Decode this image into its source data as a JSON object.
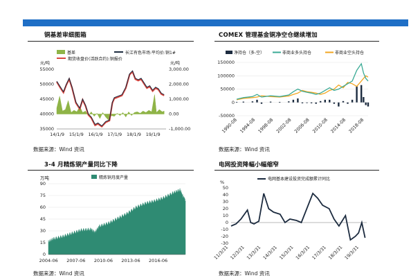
{
  "colors": {
    "bar": "#1f6fc6"
  },
  "panels": [
    {
      "title": "铜基差审细图箱",
      "source": "数据来源：Wind 资讯"
    },
    {
      "title": "COMEX 管理基金铜净空仓继续增加",
      "source": "数据来源：Wind 资讯"
    },
    {
      "title": "3-4 月精炼铜产量同比下降",
      "source": "数据来源：Wind 资讯"
    },
    {
      "title": "电网投资降幅小幅缩窄",
      "source": "数据来源：Wind 资讯"
    }
  ],
  "chart_data": [
    {
      "type": "line",
      "left_unit": "元/吨",
      "right_unit": "元/吨",
      "x_ticks": [
        "14/1/9",
        "15/1/9",
        "16/1/9",
        "17/1/9",
        "18/1/9",
        "19/1/9"
      ],
      "x_range": [
        2014.0,
        2019.7
      ],
      "y_left_ticks": [
        "35000",
        "40000",
        "45000",
        "50000",
        "55000"
      ],
      "y_left_range": [
        35000,
        55000
      ],
      "y_right_ticks": [
        "-1,000.00",
        "0.00",
        "1,000.00",
        "2,000.00",
        "3,000.00"
      ],
      "y_right_range": [
        -1000,
        3000
      ],
      "legend": [
        "基差",
        "长江有色市场:平均价:铜1#",
        "期货收盘价(活跃合约):铜报价"
      ],
      "colors": {
        "basis": "#8fb447",
        "spot": "#1c2b3f",
        "futures": "#d9463f"
      },
      "series": [
        {
          "name": "长江有色市场:平均价:铜1#",
          "points": [
            [
              2014.0,
              51000
            ],
            [
              2014.2,
              49000
            ],
            [
              2014.35,
              47500
            ],
            [
              2014.5,
              50000
            ],
            [
              2014.65,
              52000
            ],
            [
              2014.8,
              49000
            ],
            [
              2015.0,
              44000
            ],
            [
              2015.2,
              42000
            ],
            [
              2015.35,
              45000
            ],
            [
              2015.5,
              43000
            ],
            [
              2015.65,
              40000
            ],
            [
              2015.8,
              39000
            ],
            [
              2016.0,
              36500
            ],
            [
              2016.15,
              37000
            ],
            [
              2016.35,
              36000
            ],
            [
              2016.55,
              37500
            ],
            [
              2016.75,
              38000
            ],
            [
              2016.9,
              44000
            ],
            [
              2017.0,
              45500
            ],
            [
              2017.2,
              46000
            ],
            [
              2017.4,
              46500
            ],
            [
              2017.6,
              49000
            ],
            [
              2017.8,
              53500
            ],
            [
              2017.95,
              54500
            ],
            [
              2018.1,
              52000
            ],
            [
              2018.25,
              51500
            ],
            [
              2018.4,
              52000
            ],
            [
              2018.55,
              50500
            ],
            [
              2018.7,
              49000
            ],
            [
              2018.85,
              49500
            ],
            [
              2019.0,
              48000
            ],
            [
              2019.15,
              49000
            ],
            [
              2019.3,
              48500
            ],
            [
              2019.45,
              47000
            ],
            [
              2019.6,
              46500
            ]
          ]
        },
        {
          "name": "期货收盘价(活跃合约):铜报价",
          "points": [
            [
              2014.0,
              50800
            ],
            [
              2014.2,
              48700
            ],
            [
              2014.35,
              47200
            ],
            [
              2014.5,
              49800
            ],
            [
              2014.65,
              51700
            ],
            [
              2014.8,
              48700
            ],
            [
              2015.0,
              43700
            ],
            [
              2015.2,
              41700
            ],
            [
              2015.35,
              44800
            ],
            [
              2015.5,
              42700
            ],
            [
              2015.65,
              39700
            ],
            [
              2015.8,
              38700
            ],
            [
              2016.0,
              36200
            ],
            [
              2016.15,
              36700
            ],
            [
              2016.35,
              35800
            ],
            [
              2016.55,
              37200
            ],
            [
              2016.75,
              37800
            ],
            [
              2016.9,
              43700
            ],
            [
              2017.0,
              45200
            ],
            [
              2017.2,
              45700
            ],
            [
              2017.4,
              46200
            ],
            [
              2017.6,
              48700
            ],
            [
              2017.8,
              53200
            ],
            [
              2017.95,
              54200
            ],
            [
              2018.1,
              51700
            ],
            [
              2018.25,
              51200
            ],
            [
              2018.4,
              51700
            ],
            [
              2018.55,
              50200
            ],
            [
              2018.7,
              48700
            ],
            [
              2018.85,
              49200
            ],
            [
              2019.0,
              47700
            ],
            [
              2019.15,
              48700
            ],
            [
              2019.3,
              48200
            ],
            [
              2019.45,
              46700
            ],
            [
              2019.6,
              46200
            ]
          ]
        },
        {
          "name": "基差",
          "axis": "right",
          "points": [
            [
              2014.0,
              400
            ],
            [
              2014.15,
              1200
            ],
            [
              2014.3,
              200
            ],
            [
              2014.45,
              300
            ],
            [
              2014.6,
              900
            ],
            [
              2014.75,
              100
            ],
            [
              2014.9,
              250
            ],
            [
              2015.05,
              150
            ],
            [
              2015.2,
              500
            ],
            [
              2015.35,
              100
            ],
            [
              2015.5,
              200
            ],
            [
              2015.65,
              -100
            ],
            [
              2015.8,
              150
            ],
            [
              2015.95,
              -150
            ],
            [
              2016.1,
              50
            ],
            [
              2016.25,
              -300
            ],
            [
              2016.4,
              100
            ],
            [
              2016.55,
              -200
            ],
            [
              2016.7,
              -400
            ],
            [
              2016.85,
              -100
            ],
            [
              2017.0,
              -150
            ],
            [
              2017.15,
              50
            ],
            [
              2017.3,
              -100
            ],
            [
              2017.45,
              100
            ],
            [
              2017.6,
              -200
            ],
            [
              2017.75,
              150
            ],
            [
              2017.9,
              -100
            ],
            [
              2018.05,
              100
            ],
            [
              2018.2,
              150
            ],
            [
              2018.35,
              50
            ],
            [
              2018.5,
              200
            ],
            [
              2018.65,
              100
            ],
            [
              2018.8,
              250
            ],
            [
              2018.95,
              150
            ],
            [
              2019.1,
              1300
            ],
            [
              2019.2,
              100
            ],
            [
              2019.35,
              300
            ],
            [
              2019.5,
              150
            ],
            [
              2019.6,
              200
            ]
          ]
        }
      ]
    },
    {
      "type": "line",
      "x_ticks": [
        "1990-08",
        "1994-08",
        "1998-08",
        "2002-08",
        "2006-08",
        "2010-08",
        "2014-08",
        "2018-08"
      ],
      "x_range": [
        1990.5,
        2019.5
      ],
      "y_ticks": [
        "-50000",
        "0",
        "50000",
        "100000",
        "150000"
      ],
      "y_range": [
        -50000,
        150000
      ],
      "legend": [
        "净持仓（多-空）",
        "非商业多头持仓",
        "非商业空头持仓"
      ],
      "colors": {
        "net": "#1c2b3f",
        "long": "#3aaa95",
        "short": "#f2a622"
      },
      "series": [
        {
          "name": "非商业多头持仓",
          "points": [
            [
              1990.5,
              12000
            ],
            [
              1992,
              18000
            ],
            [
              1994,
              22000
            ],
            [
              1995,
              30000
            ],
            [
              1996,
              20000
            ],
            [
              1998,
              25000
            ],
            [
              2000,
              22000
            ],
            [
              2002,
              28000
            ],
            [
              2003,
              40000
            ],
            [
              2004,
              50000
            ],
            [
              2005,
              42000
            ],
            [
              2006,
              38000
            ],
            [
              2007,
              35000
            ],
            [
              2008,
              30000
            ],
            [
              2009,
              35000
            ],
            [
              2010,
              45000
            ],
            [
              2011,
              55000
            ],
            [
              2012,
              45000
            ],
            [
              2013,
              50000
            ],
            [
              2014,
              60000
            ],
            [
              2015,
              70000
            ],
            [
              2016,
              80000
            ],
            [
              2017,
              120000
            ],
            [
              2018,
              145000
            ],
            [
              2018.5,
              110000
            ],
            [
              2019,
              90000
            ],
            [
              2019.5,
              80000
            ]
          ]
        },
        {
          "name": "非商业空头持仓",
          "points": [
            [
              1990.5,
              10000
            ],
            [
              1992,
              15000
            ],
            [
              1994,
              18000
            ],
            [
              1995,
              20000
            ],
            [
              1996,
              25000
            ],
            [
              1998,
              22000
            ],
            [
              2000,
              20000
            ],
            [
              2002,
              24000
            ],
            [
              2003,
              30000
            ],
            [
              2004,
              35000
            ],
            [
              2005,
              45000
            ],
            [
              2006,
              40000
            ],
            [
              2007,
              38000
            ],
            [
              2008,
              35000
            ],
            [
              2009,
              30000
            ],
            [
              2010,
              35000
            ],
            [
              2011,
              45000
            ],
            [
              2012,
              50000
            ],
            [
              2013,
              65000
            ],
            [
              2014,
              55000
            ],
            [
              2015,
              75000
            ],
            [
              2016,
              70000
            ],
            [
              2017,
              60000
            ],
            [
              2018,
              80000
            ],
            [
              2018.5,
              90000
            ],
            [
              2019,
              100000
            ],
            [
              2019.5,
              95000
            ]
          ]
        },
        {
          "name": "净持仓（多-空）",
          "bars": true,
          "points": [
            [
              1990.5,
              2000
            ],
            [
              1992,
              3000
            ],
            [
              1994,
              4000
            ],
            [
              1995,
              10000
            ],
            [
              1996,
              -5000
            ],
            [
              1998,
              3000
            ],
            [
              2000,
              2000
            ],
            [
              2002,
              4000
            ],
            [
              2003,
              10000
            ],
            [
              2004,
              15000
            ],
            [
              2005,
              -3000
            ],
            [
              2006,
              -2000
            ],
            [
              2007,
              -3000
            ],
            [
              2008,
              -5000
            ],
            [
              2009,
              5000
            ],
            [
              2010,
              10000
            ],
            [
              2011,
              10000
            ],
            [
              2012,
              -5000
            ],
            [
              2013,
              -15000
            ],
            [
              2014,
              5000
            ],
            [
              2015,
              -5000
            ],
            [
              2016,
              10000
            ],
            [
              2017,
              60000
            ],
            [
              2018,
              65000
            ],
            [
              2018.5,
              20000
            ],
            [
              2019,
              -10000
            ],
            [
              2019.5,
              -15000
            ]
          ]
        }
      ]
    },
    {
      "type": "area",
      "ylabel": "万吨",
      "legend": [
        "精炼铜月度产量"
      ],
      "x_ticks": [
        "2004-06",
        "2007-06",
        "2010-06",
        "2013-06",
        "2016-06"
      ],
      "x_range": [
        2004.4,
        2019.4
      ],
      "y_ticks": [
        "0",
        "15",
        "30",
        "45",
        "60",
        "75",
        "90"
      ],
      "y_range": [
        0,
        90
      ],
      "color": "#2f8b73",
      "values": [
        [
          2004.4,
          16
        ],
        [
          2005,
          20
        ],
        [
          2006,
          23
        ],
        [
          2007,
          27
        ],
        [
          2008,
          31
        ],
        [
          2009,
          32
        ],
        [
          2009.5,
          28
        ],
        [
          2010,
          36
        ],
        [
          2011,
          40
        ],
        [
          2012,
          46
        ],
        [
          2013,
          52
        ],
        [
          2014,
          60
        ],
        [
          2015,
          65
        ],
        [
          2016,
          68
        ],
        [
          2017,
          72
        ],
        [
          2018,
          78
        ],
        [
          2018.8,
          82
        ],
        [
          2019.2,
          72
        ],
        [
          2019.4,
          68
        ]
      ]
    },
    {
      "type": "line",
      "ylabel": "%",
      "legend": [
        "电网基本建设投资完成额累计同比"
      ],
      "x_ticks": [
        "11/3/31",
        "12/3/31",
        "13/3/31",
        "14/3/31",
        "15/3/31",
        "16/3/31",
        "17/3/31",
        "18/3/31",
        "19/3/31"
      ],
      "x_range": [
        2011.2,
        2019.5
      ],
      "y_ticks": [
        "-30",
        "-20",
        "-10",
        "0",
        "10",
        "20",
        "30",
        "40",
        "50"
      ],
      "y_range": [
        -30,
        50
      ],
      "color": "#1c2b3f",
      "points": [
        [
          2011.2,
          -5
        ],
        [
          2011.5,
          -2
        ],
        [
          2011.8,
          5
        ],
        [
          2012.2,
          18
        ],
        [
          2012.4,
          0
        ],
        [
          2012.6,
          -2
        ],
        [
          2012.9,
          2
        ],
        [
          2013.2,
          42
        ],
        [
          2013.5,
          20
        ],
        [
          2013.8,
          15
        ],
        [
          2014.2,
          12
        ],
        [
          2014.5,
          0
        ],
        [
          2014.8,
          5
        ],
        [
          2015.2,
          3
        ],
        [
          2015.5,
          0
        ],
        [
          2015.8,
          18
        ],
        [
          2016.2,
          42
        ],
        [
          2016.5,
          35
        ],
        [
          2016.8,
          25
        ],
        [
          2017.2,
          20
        ],
        [
          2017.5,
          5
        ],
        [
          2017.8,
          -5
        ],
        [
          2018.2,
          10
        ],
        [
          2018.5,
          -25
        ],
        [
          2018.8,
          -20
        ],
        [
          2019.0,
          -15
        ],
        [
          2019.2,
          0
        ],
        [
          2019.4,
          -22
        ]
      ]
    }
  ]
}
